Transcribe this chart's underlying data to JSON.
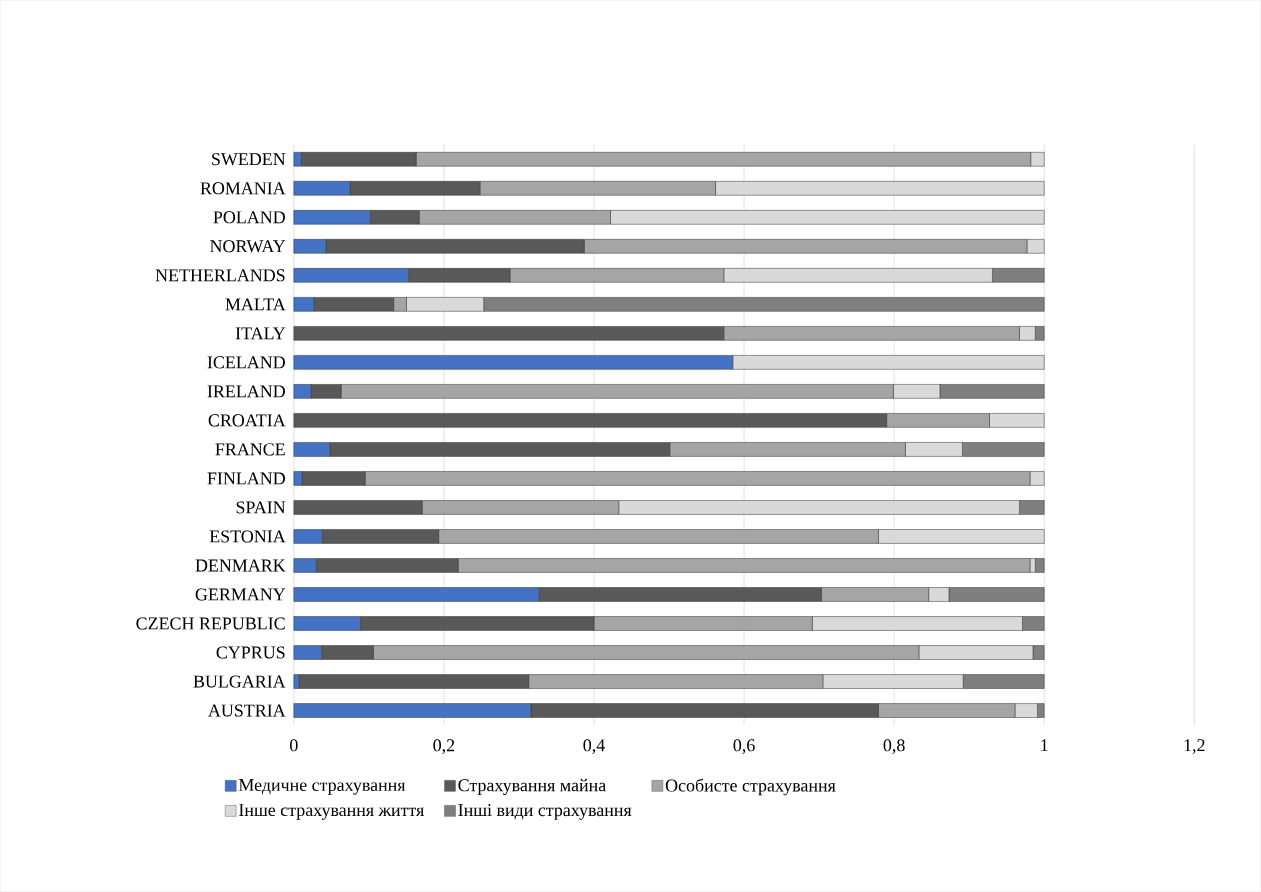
{
  "chart_data": {
    "type": "bar",
    "orientation": "horizontal",
    "stacked": true,
    "categories": [
      "SWEDEN",
      "ROMANIA",
      "POLAND",
      "NORWAY",
      "NETHERLANDS",
      "MALTA",
      "ITALY",
      "ICELAND",
      "IRELAND",
      "CROATIA",
      "FRANCE",
      "FINLAND",
      "SPAIN",
      "ESTONIA",
      "DENMARK",
      "GERMANY",
      "CZECH REPUBLIC",
      "CYPRUS",
      "BULGARIA",
      "AUSTRIA"
    ],
    "series": [
      {
        "name": "Медичне страхування",
        "color": "#4472c4",
        "values": [
          0.01,
          0.075,
          0.102,
          0.043,
          0.153,
          0.027,
          0,
          0.585,
          0.023,
          0,
          0.048,
          0.011,
          0,
          0.038,
          0.03,
          0.327,
          0.089,
          0.037,
          0.007,
          0.316
        ]
      },
      {
        "name": "Страхування майна",
        "color": "#595959",
        "values": [
          0.153,
          0.173,
          0.065,
          0.344,
          0.135,
          0.106,
          0.573,
          0,
          0.04,
          0.79,
          0.453,
          0.084,
          0.171,
          0.155,
          0.189,
          0.376,
          0.311,
          0.069,
          0.306,
          0.463
        ]
      },
      {
        "name": "Особисте страхування",
        "color": "#a5a5a5",
        "values": [
          0.819,
          0.314,
          0.255,
          0.59,
          0.285,
          0.017,
          0.394,
          0,
          0.736,
          0.137,
          0.314,
          0.886,
          0.262,
          0.586,
          0.762,
          0.143,
          0.291,
          0.727,
          0.392,
          0.182
        ]
      },
      {
        "name": "Інше страхування життя",
        "color": "#d9d9d9",
        "values": [
          0.018,
          0.438,
          0.578,
          0.023,
          0.358,
          0.103,
          0.021,
          0.415,
          0.062,
          0.073,
          0.076,
          0.019,
          0.534,
          0.221,
          0.007,
          0.027,
          0.28,
          0.152,
          0.187,
          0.03
        ]
      },
      {
        "name": "Інші види страхування",
        "color": "#7f7f7f",
        "values": [
          0,
          0,
          0,
          0,
          0.069,
          0.747,
          0.012,
          0,
          0.139,
          0,
          0.109,
          0,
          0.033,
          0,
          0.012,
          0.127,
          0.029,
          0.015,
          0.108,
          0.009
        ]
      }
    ],
    "xlim": [
      0,
      1.2
    ],
    "xticks": [
      0,
      {
        "value": 0.2,
        "label": "0,2"
      },
      {
        "value": 0.4,
        "label": "0,4"
      },
      {
        "value": 0.6,
        "label": "0,6"
      },
      {
        "value": 0.8,
        "label": "0,8"
      },
      1,
      {
        "value": 1.2,
        "label": "1,2"
      }
    ],
    "grid": "x",
    "legend": "bottom"
  }
}
